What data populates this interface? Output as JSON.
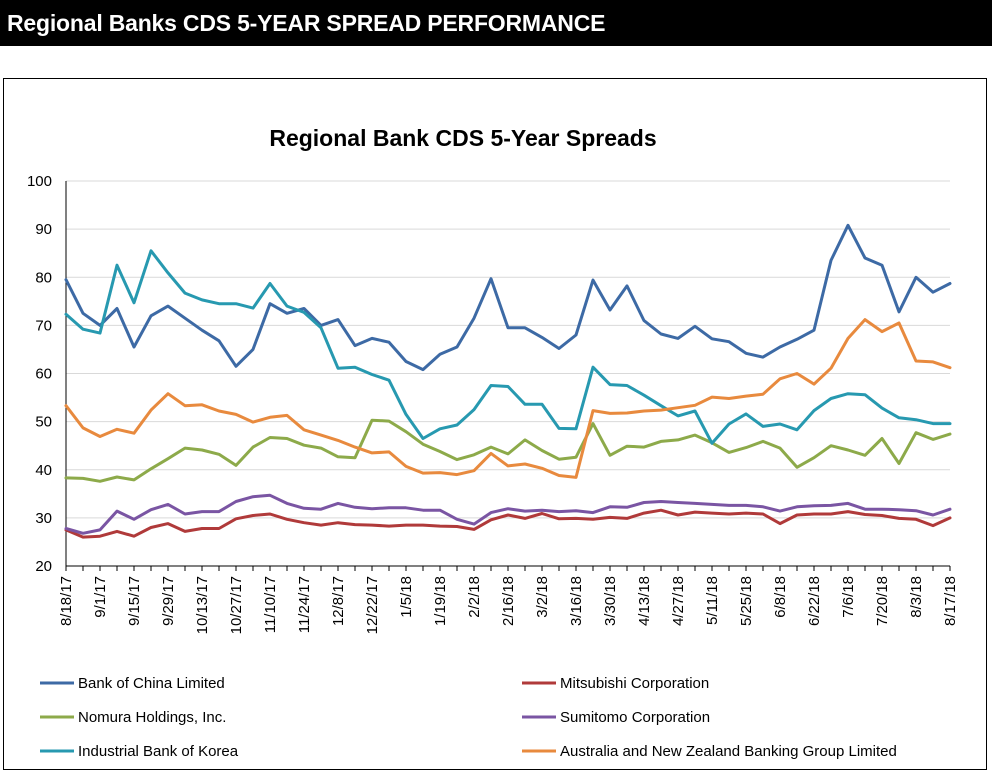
{
  "header": {
    "title": "Regional Banks CDS 5-YEAR SPREAD PERFORMANCE"
  },
  "chart_data": {
    "type": "line",
    "title": "Regional Bank CDS 5-Year Spreads",
    "xlabel": "",
    "ylabel": "",
    "ylim": [
      20,
      100
    ],
    "yticks": [
      "20",
      "30",
      "40",
      "50",
      "60",
      "70",
      "80",
      "90",
      "100"
    ],
    "grid": "horizontal",
    "legend_position": "bottom",
    "x": [
      "8/18/17",
      "8/25/17",
      "9/1/17",
      "9/8/17",
      "9/15/17",
      "9/22/17",
      "9/29/17",
      "10/6/17",
      "10/13/17",
      "10/20/17",
      "10/27/17",
      "11/3/17",
      "11/10/17",
      "11/17/17",
      "11/24/17",
      "12/1/17",
      "12/8/17",
      "12/15/17",
      "12/22/17",
      "12/29/17",
      "1/5/18",
      "1/12/18",
      "1/19/18",
      "1/26/18",
      "2/2/18",
      "2/9/18",
      "2/16/18",
      "2/23/18",
      "3/2/18",
      "3/9/18",
      "3/16/18",
      "3/23/18",
      "3/30/18",
      "4/6/18",
      "4/13/18",
      "4/20/18",
      "4/27/18",
      "5/4/18",
      "5/11/18",
      "5/18/18",
      "5/25/18",
      "6/1/18",
      "6/8/18",
      "6/15/18",
      "6/22/18",
      "6/29/18",
      "7/6/18",
      "7/13/18",
      "7/20/18",
      "7/27/18",
      "8/3/18",
      "8/10/18",
      "8/17/18"
    ],
    "x_tick_labels": [
      "8/18/17",
      "9/1/17",
      "9/15/17",
      "9/29/17",
      "10/13/17",
      "10/27/17",
      "11/10/17",
      "11/24/17",
      "12/8/17",
      "12/22/17",
      "1/5/18",
      "1/19/18",
      "2/2/18",
      "2/16/18",
      "3/2/18",
      "3/16/18",
      "3/30/18",
      "4/13/18",
      "4/27/18",
      "5/11/18",
      "5/25/18",
      "6/8/18",
      "6/22/18",
      "7/6/18",
      "7/20/18",
      "8/3/18",
      "8/17/18"
    ],
    "series": [
      {
        "name": "Bank of China Limited",
        "color": "#3d6aa5",
        "values": [
          79.5,
          72.5,
          70.0,
          73.5,
          65.5,
          72.0,
          74.0,
          71.5,
          69.0,
          66.8,
          61.5,
          65.0,
          74.5,
          72.5,
          73.5,
          70.0,
          71.2,
          65.8,
          67.3,
          66.5,
          62.5,
          60.8,
          64.0,
          65.5,
          71.5,
          79.7,
          69.5,
          69.5,
          67.5,
          65.2,
          68.0,
          79.4,
          73.2,
          78.2,
          71.0,
          68.2,
          67.3,
          69.8,
          67.2,
          66.6,
          64.2,
          63.4,
          65.5,
          67.1,
          69.0,
          83.5,
          90.8,
          84.0,
          82.5,
          72.8,
          80.0,
          76.9,
          78.7
        ]
      },
      {
        "name": "Mitsubishi Corporation",
        "color": "#b03a3a",
        "values": [
          27.5,
          26.0,
          26.2,
          27.2,
          26.2,
          28.0,
          28.8,
          27.2,
          27.8,
          27.8,
          29.8,
          30.5,
          30.8,
          29.7,
          29.0,
          28.5,
          29.0,
          28.6,
          28.5,
          28.3,
          28.5,
          28.5,
          28.3,
          28.2,
          27.6,
          29.6,
          30.6,
          29.9,
          30.9,
          29.8,
          29.9,
          29.7,
          30.1,
          29.9,
          31.0,
          31.6,
          30.6,
          31.2,
          31.0,
          30.8,
          31.0,
          30.8,
          28.8,
          30.6,
          30.8,
          30.8,
          31.3,
          30.7,
          30.5,
          29.9,
          29.7,
          28.4,
          30.0
        ]
      },
      {
        "name": "Nomura Holdings, Inc.",
        "color": "#8daa4a",
        "values": [
          38.3,
          38.2,
          37.6,
          38.5,
          37.9,
          40.2,
          42.3,
          44.5,
          44.1,
          43.2,
          40.9,
          44.7,
          46.7,
          46.5,
          45.1,
          44.5,
          42.7,
          42.5,
          50.3,
          50.1,
          47.9,
          45.3,
          43.8,
          42.1,
          43.1,
          44.7,
          43.3,
          46.2,
          44.0,
          42.2,
          42.6,
          49.6,
          43.0,
          44.9,
          44.7,
          45.9,
          46.2,
          47.2,
          45.6,
          43.6,
          44.6,
          45.9,
          44.5,
          40.5,
          42.5,
          45.0,
          44.1,
          43.0,
          46.5,
          41.3,
          47.7,
          46.3,
          47.4
        ]
      },
      {
        "name": "Sumitomo Corporation",
        "color": "#7a55a3",
        "values": [
          27.8,
          26.8,
          27.5,
          31.4,
          29.7,
          31.7,
          32.8,
          30.8,
          31.3,
          31.3,
          33.4,
          34.4,
          34.7,
          33.0,
          32.0,
          31.8,
          33.0,
          32.2,
          31.9,
          32.1,
          32.1,
          31.6,
          31.6,
          29.7,
          28.7,
          31.1,
          31.9,
          31.4,
          31.6,
          31.3,
          31.5,
          31.1,
          32.3,
          32.2,
          33.2,
          33.4,
          33.2,
          33.0,
          32.8,
          32.6,
          32.6,
          32.3,
          31.4,
          32.3,
          32.5,
          32.6,
          33.0,
          31.8,
          31.8,
          31.7,
          31.5,
          30.6,
          31.8
        ]
      },
      {
        "name": "Industrial Bank of Korea",
        "color": "#2799b0",
        "values": [
          72.3,
          69.2,
          68.4,
          82.5,
          74.7,
          85.5,
          80.9,
          76.7,
          75.3,
          74.5,
          74.5,
          73.6,
          78.7,
          74.0,
          72.7,
          69.5,
          61.1,
          61.3,
          59.8,
          58.6,
          51.5,
          46.5,
          48.5,
          49.3,
          52.5,
          57.5,
          57.3,
          53.6,
          53.6,
          48.6,
          48.5,
          61.3,
          57.7,
          57.5,
          55.5,
          53.3,
          51.2,
          52.2,
          45.5,
          49.5,
          51.6,
          49.0,
          49.5,
          48.3,
          52.3,
          54.8,
          55.8,
          55.6,
          52.8,
          50.8,
          50.4,
          49.6,
          49.6
        ]
      },
      {
        "name": "Australia and New Zealand Banking Group Limited",
        "color": "#e88a3e",
        "values": [
          53.3,
          48.7,
          46.9,
          48.4,
          47.6,
          52.4,
          55.8,
          53.3,
          53.5,
          52.2,
          51.5,
          49.9,
          50.9,
          51.3,
          48.3,
          47.2,
          46.1,
          44.7,
          43.5,
          43.7,
          40.7,
          39.3,
          39.4,
          39.0,
          39.8,
          43.4,
          40.8,
          41.2,
          40.3,
          38.8,
          38.4,
          52.3,
          51.7,
          51.8,
          52.2,
          52.4,
          52.9,
          53.4,
          55.1,
          54.8,
          55.3,
          55.7,
          58.9,
          60.0,
          57.8,
          61.1,
          67.3,
          71.2,
          68.7,
          70.5,
          62.6,
          62.4,
          61.2
        ]
      }
    ]
  }
}
